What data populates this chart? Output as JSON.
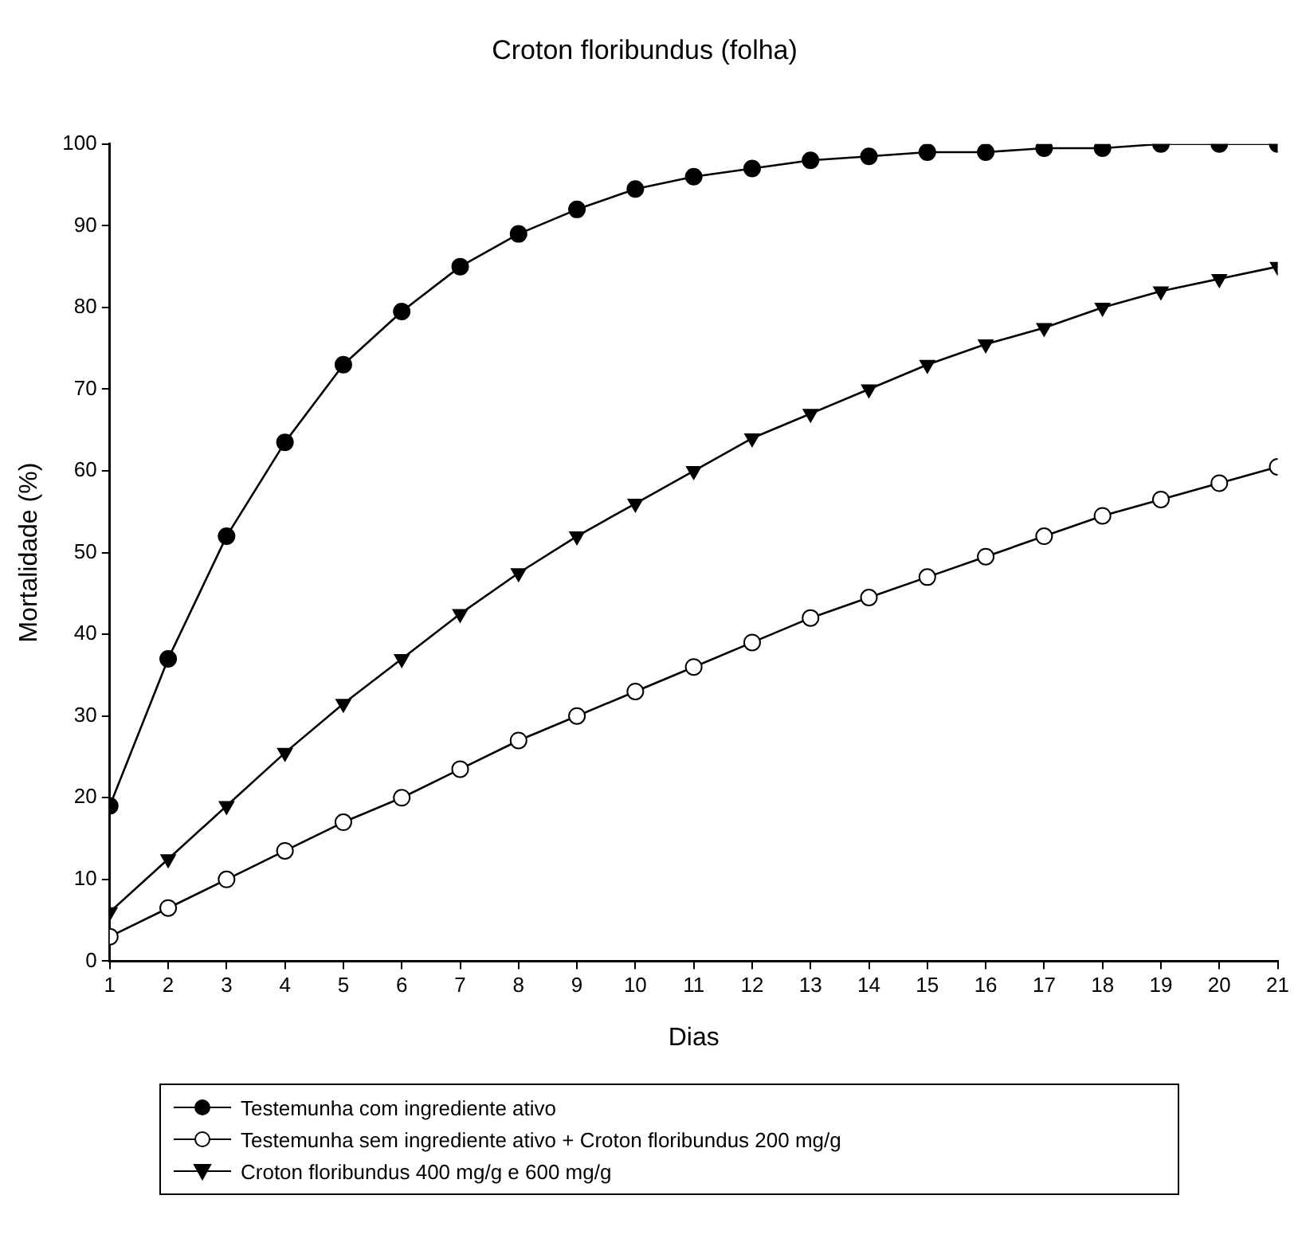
{
  "chart_data": {
    "type": "line",
    "title": "Croton floribundus (folha)",
    "xlabel": "Dias",
    "ylabel": "Mortalidade (%)",
    "x": [
      1,
      2,
      3,
      4,
      5,
      6,
      7,
      8,
      9,
      10,
      11,
      12,
      13,
      14,
      15,
      16,
      17,
      18,
      19,
      20,
      21
    ],
    "xlim": [
      1,
      21
    ],
    "xticks": [
      1,
      2,
      3,
      4,
      5,
      6,
      7,
      8,
      9,
      10,
      11,
      12,
      13,
      14,
      15,
      16,
      17,
      18,
      19,
      20,
      21
    ],
    "ylim": [
      0,
      100
    ],
    "yticks": [
      0,
      10,
      20,
      30,
      40,
      50,
      60,
      70,
      80,
      90,
      100
    ],
    "grid": false,
    "legend": "bottom",
    "line_style": "solid",
    "series": [
      {
        "name": "Testemunha com ingrediente ativo",
        "color": "#000000",
        "marker": "circle",
        "values": [
          19,
          37,
          52,
          63.5,
          73,
          79.5,
          85,
          89,
          92,
          94.5,
          96,
          97,
          98,
          98.5,
          99,
          99,
          99.5,
          99.5,
          100,
          100,
          100
        ]
      },
      {
        "name": "Testemunha sem ingrediente ativo + Croton floribundus 200 mg/g",
        "color": "#000000",
        "marker": "circle",
        "colors": [
          "#ffffff",
          "#ffffff",
          "#ffffff",
          "#ffffff",
          "#ffffff",
          "#ffffff",
          "#ffffff",
          "#ffffff",
          "#ffffff",
          "#ffffff",
          "#ffffff",
          "#ffffff",
          "#ffffff",
          "#ffffff",
          "#ffffff",
          "#ffffff",
          "#ffffff",
          "#ffffff",
          "#ffffff",
          "#ffffff",
          "#ffffff"
        ],
        "values": [
          3,
          6.5,
          10,
          13.5,
          17,
          20,
          23.5,
          27,
          30,
          33,
          36,
          39,
          42,
          44.5,
          47,
          49.5,
          52,
          54.5,
          56.5,
          58.5,
          60.5
        ]
      },
      {
        "name": "Croton floribundus 400 mg/g e 600 mg/g",
        "color": "#000000",
        "marker": "triangle",
        "values": [
          6,
          12.5,
          19,
          25.5,
          31.5,
          37,
          42.5,
          47.5,
          52,
          56,
          60,
          64,
          67,
          70,
          73,
          75.5,
          77.5,
          80,
          82,
          83.5,
          85
        ]
      }
    ]
  }
}
